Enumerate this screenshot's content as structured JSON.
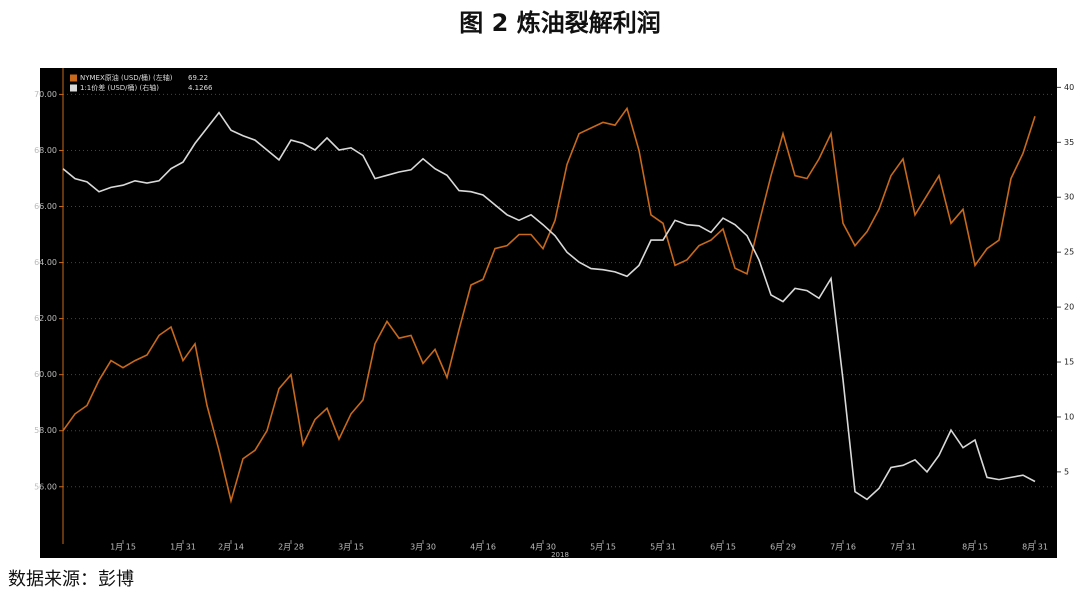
{
  "chart_data": {
    "type": "line",
    "title": "图 2 炼油裂解利润",
    "source": "数据来源：彭博",
    "xlabel": "2018",
    "categories": [
      null,
      null,
      null,
      null,
      null,
      "1月 15",
      null,
      null,
      null,
      null,
      "1月 31",
      null,
      null,
      null,
      "2月 14",
      null,
      null,
      null,
      null,
      "2月 28",
      null,
      null,
      null,
      null,
      "3月 15",
      null,
      null,
      null,
      null,
      null,
      "3月 30",
      null,
      null,
      null,
      null,
      "4月 16",
      null,
      null,
      null,
      null,
      "4月 30",
      null,
      null,
      null,
      null,
      "5月 15",
      null,
      null,
      null,
      null,
      "5月 31",
      null,
      null,
      null,
      null,
      "6月 15",
      null,
      null,
      null,
      null,
      "6月 29",
      null,
      null,
      null,
      null,
      "7月 16",
      null,
      null,
      null,
      null,
      "7月 31",
      null,
      null,
      null,
      null,
      null,
      "8月 15",
      null,
      null,
      null,
      null,
      "8月 31"
    ],
    "series": [
      {
        "name": "NYMEX原油 (USD/桶) (左轴)",
        "last_value": 69.22,
        "color": "#c8691c",
        "axis": "y",
        "values": [
          58.0,
          58.6,
          58.9,
          59.8,
          60.5,
          60.25,
          60.5,
          60.7,
          61.4,
          61.7,
          60.5,
          61.1,
          58.9,
          57.3,
          55.5,
          57.0,
          57.3,
          58.0,
          59.5,
          60.0,
          57.5,
          58.4,
          58.8,
          57.7,
          58.6,
          59.1,
          61.1,
          61.9,
          61.3,
          61.4,
          60.4,
          60.9,
          59.9,
          61.6,
          63.2,
          63.4,
          64.5,
          64.6,
          65.0,
          65.0,
          64.5,
          65.5,
          67.5,
          68.6,
          68.8,
          69.0,
          68.9,
          69.5,
          68.0,
          65.7,
          65.4,
          63.9,
          64.1,
          64.6,
          64.8,
          65.2,
          63.8,
          63.6,
          65.4,
          67.1,
          68.6,
          67.1,
          67.0,
          67.7,
          68.6,
          65.4,
          64.6,
          65.1,
          65.9,
          67.1,
          67.7,
          65.7,
          66.4,
          67.1,
          65.4,
          65.9,
          63.9,
          64.5,
          64.8,
          67.0,
          67.9,
          69.22
        ]
      },
      {
        "name": "1:1价差 (USD/桶) (右轴)",
        "last_value": 4.1266,
        "color": "#d9d9d9",
        "axis": "y2",
        "values": [
          32.6,
          31.7,
          31.4,
          30.5,
          30.9,
          31.1,
          31.5,
          31.3,
          31.5,
          32.6,
          33.2,
          34.9,
          36.3,
          37.7,
          36.1,
          35.6,
          35.2,
          34.3,
          33.4,
          35.2,
          34.9,
          34.3,
          35.4,
          34.3,
          34.5,
          33.8,
          31.7,
          32.0,
          32.3,
          32.5,
          33.5,
          32.6,
          32.0,
          30.6,
          30.5,
          30.2,
          29.3,
          28.4,
          27.9,
          28.4,
          27.5,
          26.5,
          25.0,
          24.1,
          23.5,
          23.4,
          23.2,
          22.8,
          23.8,
          26.1,
          26.1,
          27.9,
          27.5,
          27.4,
          26.8,
          28.1,
          27.5,
          26.5,
          24.3,
          21.1,
          20.5,
          21.7,
          21.5,
          20.8,
          22.6,
          13.4,
          3.2,
          2.5,
          3.5,
          5.4,
          5.6,
          6.1,
          5.0,
          6.5,
          8.8,
          7.2,
          7.9,
          4.5,
          4.3,
          4.5,
          4.7,
          4.1266
        ]
      }
    ],
    "ylim": [
      54.1,
      70.8
    ],
    "yticks": [
      {
        "value": 56,
        "label": "56.00"
      },
      {
        "value": 58,
        "label": "58.00"
      },
      {
        "value": 60,
        "label": "60.00"
      },
      {
        "value": 62,
        "label": "62.00"
      },
      {
        "value": 64,
        "label": "64.00"
      },
      {
        "value": 66,
        "label": "66.00"
      },
      {
        "value": 68,
        "label": "68.00"
      },
      {
        "value": 70,
        "label": "70.00"
      }
    ],
    "y2lim": [
      -1.2,
      41.4
    ],
    "y2ticks": [
      5,
      10,
      15,
      20,
      25,
      30,
      35,
      40
    ],
    "grid": true
  }
}
